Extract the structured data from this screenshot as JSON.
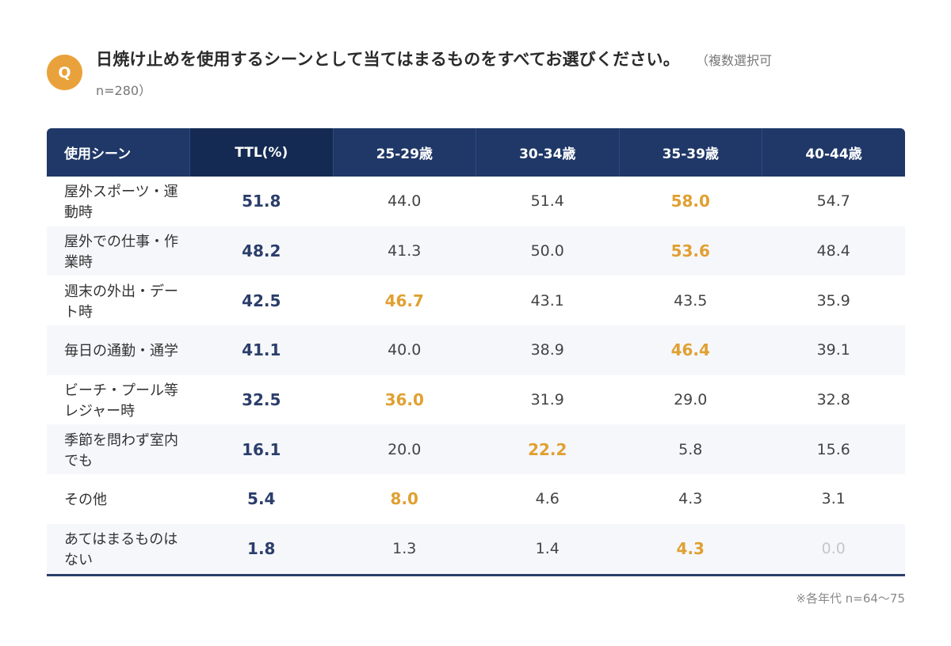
{
  "question": {
    "badge": "Q",
    "text": "日焼け止めを使用するシーンとして当てはまるものをすべてお選びください。",
    "note": "（複数選択可",
    "sample": "n=280）"
  },
  "chart_data": {
    "type": "table",
    "columns": [
      "使用シーン",
      "TTL(%)",
      "25-29歳",
      "30-34歳",
      "35-39歳",
      "40-44歳"
    ],
    "rows": [
      {
        "label": "屋外スポーツ・運動時",
        "values": [
          "51.8",
          "44.0",
          "51.4",
          "58.0",
          "54.7"
        ]
      },
      {
        "label": "屋外での仕事・作業時",
        "values": [
          "48.2",
          "41.3",
          "50.0",
          "53.6",
          "48.4"
        ]
      },
      {
        "label": "週末の外出・デート時",
        "values": [
          "42.5",
          "46.7",
          "43.1",
          "43.5",
          "35.9"
        ]
      },
      {
        "label": "毎日の通勤・通学",
        "values": [
          "41.1",
          "40.0",
          "38.9",
          "46.4",
          "39.1"
        ]
      },
      {
        "label": "ビーチ・プール等レジャー時",
        "values": [
          "32.5",
          "36.0",
          "31.9",
          "29.0",
          "32.8"
        ]
      },
      {
        "label": "季節を問わず室内でも",
        "values": [
          "16.1",
          "20.0",
          "22.2",
          "5.8",
          "15.6"
        ]
      },
      {
        "label": "その他",
        "values": [
          "5.4",
          "8.0",
          "4.6",
          "4.3",
          "3.1"
        ]
      },
      {
        "label": "あてはまるものはない",
        "values": [
          "1.8",
          "1.3",
          "1.4",
          "4.3",
          "0.0"
        ]
      }
    ],
    "highlight_max_age_group_color": "#e0a032",
    "ttl_color": "#2b3e6b",
    "zero_color": "#c3c7cf"
  },
  "footnote": "※各年代 n=64～75",
  "colors": {
    "header_bg": "#1f3868",
    "header_ttl_bg": "#142a52",
    "badge": "#e9a23b"
  }
}
